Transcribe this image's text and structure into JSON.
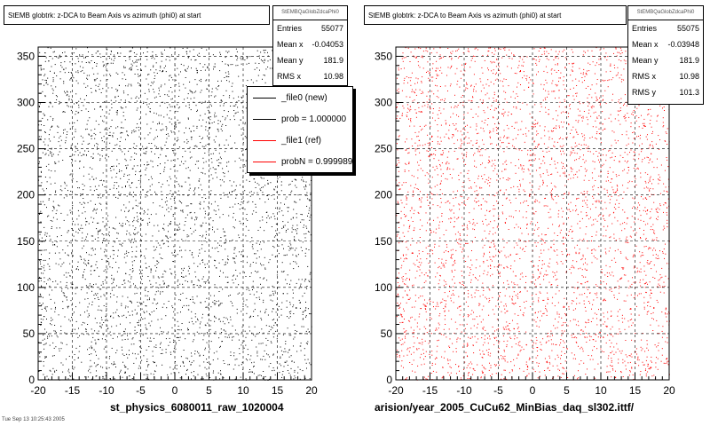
{
  "chart_data": [
    {
      "type": "scatter",
      "title": "StEMB globtrk: z-DCA to Beam Axis vs azimuth (phi0) at start",
      "xlim": [
        -20,
        20
      ],
      "ylim": [
        0,
        360
      ],
      "x_ticks": [
        "-20",
        "-15",
        "-10",
        "-5",
        "0",
        "5",
        "10",
        "15",
        "20"
      ],
      "y_ticks": [
        "0",
        "50",
        "100",
        "150",
        "200",
        "250",
        "300",
        "350"
      ],
      "grid": true,
      "marker_color": "#000000",
      "stats": {
        "name": "StEMBQaGlobZdcaPhi0",
        "rows": [
          {
            "label": "Entries",
            "value": "55077"
          },
          {
            "label": "Mean x",
            "value": "-0.04053"
          },
          {
            "label": "Mean y",
            "value": "181.9"
          },
          {
            "label": "RMS x",
            "value": "10.98"
          }
        ]
      },
      "footer": "st_physics_6080011_raw_1020004"
    },
    {
      "type": "scatter",
      "title": "StEMB globtrk: z-DCA to Beam Axis vs azimuth (phi0) at start",
      "xlim": [
        -20,
        20
      ],
      "ylim": [
        0,
        360
      ],
      "x_ticks": [
        "-20",
        "-15",
        "-10",
        "-5",
        "0",
        "5",
        "10",
        "15",
        "20"
      ],
      "y_ticks": [
        "0",
        "50",
        "100",
        "150",
        "200",
        "250",
        "300",
        "350"
      ],
      "grid": true,
      "marker_color": "#ff0000",
      "stats": {
        "name": "StEMBQaGlobZdcaPhi0",
        "rows": [
          {
            "label": "Entries",
            "value": "55075"
          },
          {
            "label": "Mean x",
            "value": "-0.03948"
          },
          {
            "label": "Mean y",
            "value": "181.9"
          },
          {
            "label": "RMS x",
            "value": "10.98"
          },
          {
            "label": "RMS y",
            "value": "101.3"
          }
        ]
      },
      "footer": "arision/year_2005_CuCu62_MinBias_daq_sl302.ittf/"
    }
  ],
  "legend": {
    "entries": [
      {
        "text": "_file0 (new)",
        "color": "#000000"
      },
      {
        "text": "prob = 1.000000",
        "color": "#000000"
      },
      {
        "text": "_file1 (ref)",
        "color": "#ff0000"
      },
      {
        "text": "probN = 0.999989",
        "color": "#ff0000"
      }
    ]
  },
  "corner_text": "Tue Sep 13 10:25:43 2005"
}
